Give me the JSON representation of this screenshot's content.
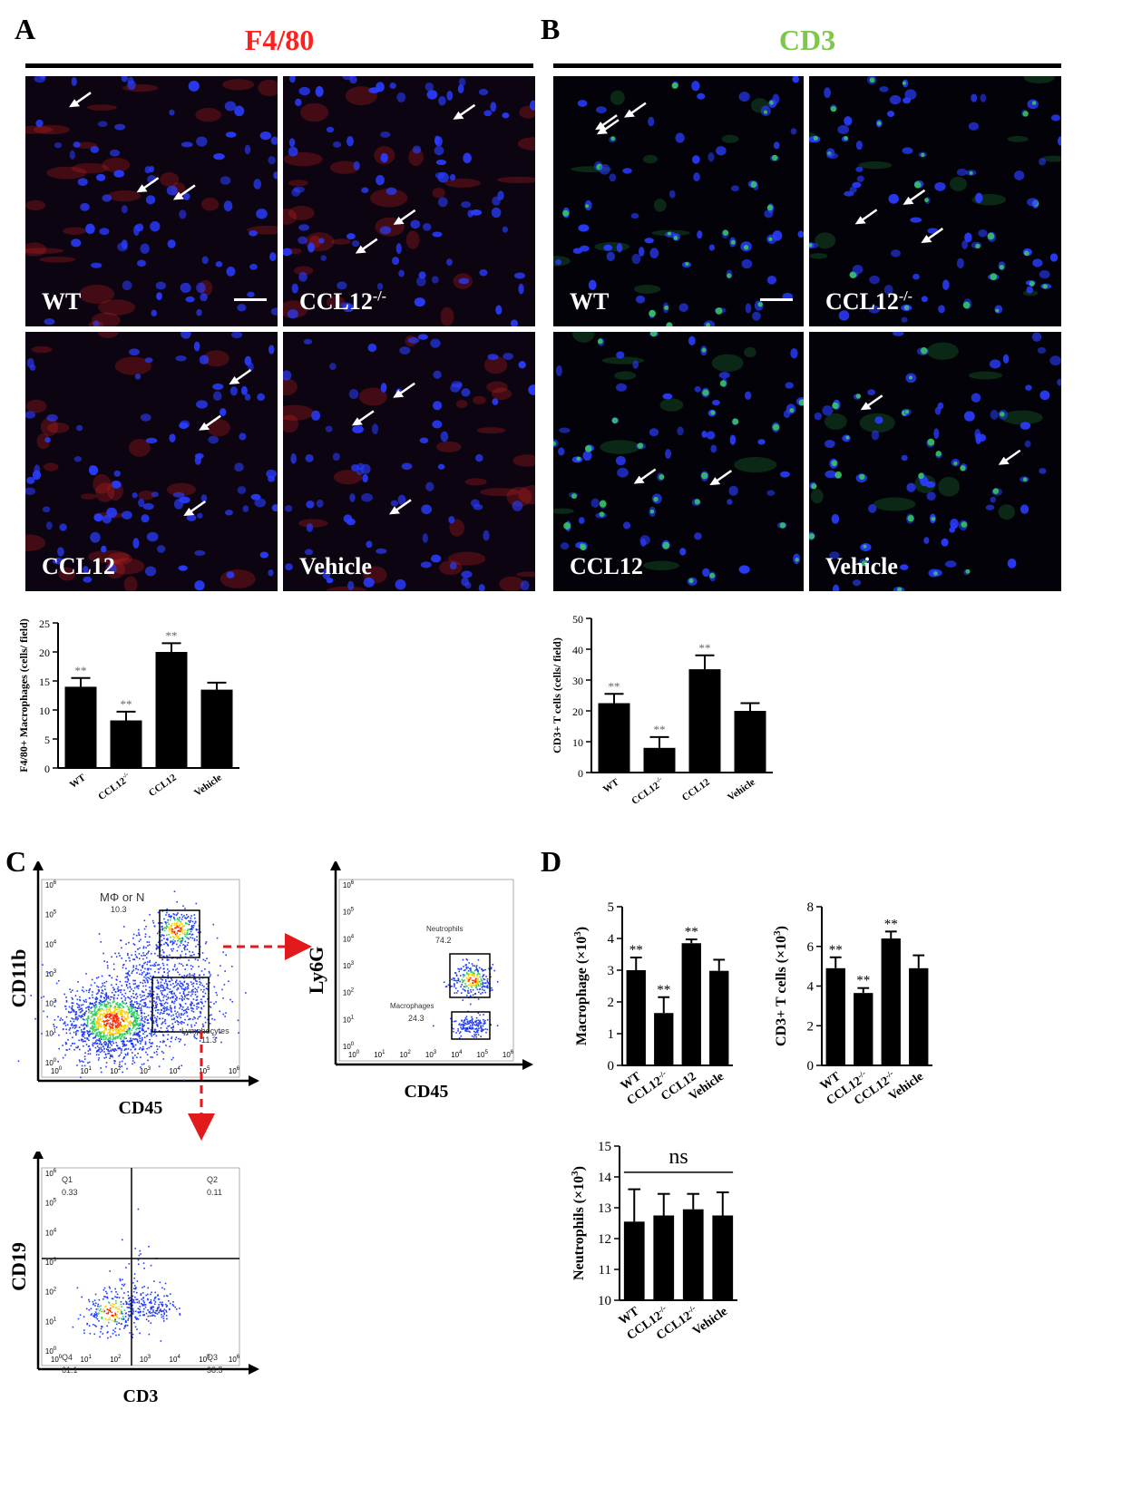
{
  "panels": {
    "A": {
      "letter": "A",
      "title": "F4/80",
      "title_color": "#ff2020",
      "images": [
        {
          "label": "WT",
          "sup": ""
        },
        {
          "label": "CCL12",
          "sup": "-/-"
        },
        {
          "label": "CCL12",
          "sup": ""
        },
        {
          "label": "Vehicle",
          "sup": ""
        }
      ]
    },
    "B": {
      "letter": "B",
      "title": "CD3",
      "title_color": "#7dc84a",
      "images": [
        {
          "label": "WT",
          "sup": ""
        },
        {
          "label": "CCL12",
          "sup": "-/-"
        },
        {
          "label": "CCL12",
          "sup": ""
        },
        {
          "label": "Vehicle",
          "sup": ""
        }
      ]
    },
    "C": {
      "letter": "C"
    },
    "D": {
      "letter": "D"
    }
  },
  "stain_colors": {
    "nucleus": "#2a3cff",
    "f480": "#d42424",
    "cd3": "#38d858"
  },
  "chart_data": [
    {
      "id": "A-bar",
      "type": "bar",
      "categories": [
        "WT",
        "CCL12-/-",
        "CCL12",
        "Vehicle"
      ],
      "values": [
        14.0,
        8.2,
        20.0,
        13.5
      ],
      "errors": [
        1.5,
        1.5,
        1.5,
        1.2
      ],
      "significance": [
        "**",
        "**",
        "**",
        ""
      ],
      "ylabel": "F4/80+ Macrophages (cells/ field)",
      "ylim": [
        0,
        25
      ],
      "yticks": [
        0,
        5,
        10,
        15,
        20,
        25
      ]
    },
    {
      "id": "B-bar",
      "type": "bar",
      "categories": [
        "WT",
        "CCL12-/-",
        "CCL12",
        "Vehicle"
      ],
      "values": [
        22.5,
        8.0,
        33.5,
        20.0
      ],
      "errors": [
        3.0,
        3.5,
        4.5,
        2.5
      ],
      "significance": [
        "**",
        "**",
        "**",
        ""
      ],
      "ylabel": "CD3+ T cells (cells/ field)",
      "ylim": [
        0,
        50
      ],
      "yticks": [
        0,
        10,
        20,
        30,
        40,
        50
      ]
    },
    {
      "id": "D-macrophage",
      "type": "bar",
      "categories": [
        "WT",
        "CCL12-/-",
        "CCL12",
        "Vehicle"
      ],
      "values": [
        3.0,
        1.65,
        3.85,
        2.98
      ],
      "errors": [
        0.4,
        0.5,
        0.12,
        0.35
      ],
      "significance": [
        "**",
        "**",
        "**",
        ""
      ],
      "ylabel": "Macrophage (×10",
      "ylabel_sup": "3",
      "ylabel_end": ")",
      "ylim": [
        0,
        5
      ],
      "yticks": [
        0,
        1,
        2,
        3,
        4,
        5
      ]
    },
    {
      "id": "D-tcell",
      "type": "bar",
      "categories": [
        "WT",
        "CCL12-/-",
        "CCL12-/-",
        "Vehicle"
      ],
      "values": [
        4.9,
        3.65,
        6.4,
        4.9
      ],
      "errors": [
        0.55,
        0.25,
        0.35,
        0.65
      ],
      "significance": [
        "**",
        "**",
        "**",
        ""
      ],
      "ylabel": "CD3+ T cells (×10",
      "ylabel_sup": "3",
      "ylabel_end": ")",
      "ylim": [
        0,
        8
      ],
      "yticks": [
        0,
        2,
        4,
        6,
        8
      ]
    },
    {
      "id": "D-neutrophil",
      "type": "bar",
      "categories": [
        "WT",
        "CCL12-/-",
        "CCL12-/-",
        "Vehicle"
      ],
      "values": [
        12.55,
        12.75,
        12.95,
        12.75
      ],
      "errors": [
        1.05,
        0.7,
        0.5,
        0.75
      ],
      "significance": [
        "",
        "",
        "",
        ""
      ],
      "group_annotation": "ns",
      "ylabel": "Neutrophils (×10",
      "ylabel_sup": "3",
      "ylabel_end": ")",
      "ylim": [
        10,
        15
      ],
      "yticks": [
        10,
        11,
        12,
        13,
        14,
        15
      ]
    },
    {
      "id": "C-flow1",
      "type": "scatter",
      "xlabel": "CD45",
      "ylabel": "CD11b",
      "axis_ticks": [
        "0",
        "1",
        "2",
        "3",
        "4",
        "5",
        "6"
      ],
      "axis_base": "10",
      "gates": [
        {
          "name": "MΦ or N",
          "value": "10.3"
        },
        {
          "name": "Lymphocytes",
          "value": "11.3"
        }
      ]
    },
    {
      "id": "C-flow2",
      "type": "scatter",
      "xlabel": "CD45",
      "ylabel": "Ly6G",
      "axis_ticks": [
        "0",
        "1",
        "2",
        "3",
        "4",
        "5",
        "6"
      ],
      "axis_base": "10",
      "gates": [
        {
          "name": "Neutrophils",
          "value": "74.2"
        },
        {
          "name": "Macrophages",
          "value": "24.3"
        }
      ]
    },
    {
      "id": "C-flow3",
      "type": "scatter",
      "xlabel": "CD3",
      "ylabel": "CD19",
      "axis_ticks": [
        "0",
        "1",
        "2",
        "3",
        "4",
        "5",
        "6"
      ],
      "axis_base": "10",
      "quadrants": [
        {
          "name": "Q1",
          "value": "0.33"
        },
        {
          "name": "Q2",
          "value": "0.11"
        },
        {
          "name": "Q3",
          "value": "38.5"
        },
        {
          "name": "Q4",
          "value": "61.1"
        }
      ]
    }
  ]
}
